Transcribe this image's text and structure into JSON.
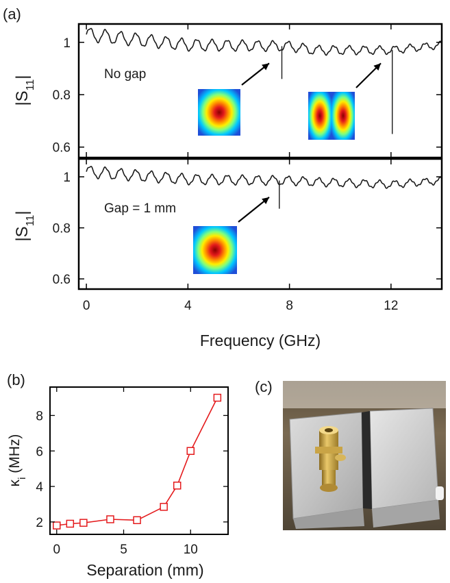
{
  "panel_labels": {
    "a": "(a)",
    "b": "(b)",
    "c": "(c)"
  },
  "colors": {
    "trace": "#1a1a1a",
    "panel_b_series": "#e41a1c",
    "axis": "#000000"
  },
  "chart_data": [
    {
      "type": "line",
      "panel": "(a) top",
      "ylabel": "|S",
      "ylabel_sub": "11",
      "ylabel_end": "|",
      "annotation": "No gap",
      "ylim": [
        0.56,
        1.07
      ],
      "xlim": [
        -0.3,
        14
      ],
      "yticks": [
        0.6,
        0.8,
        1
      ],
      "ytick_labels": [
        "0.6",
        "0.8",
        "1"
      ],
      "baseline": {
        "x": [
          0,
          4,
          8,
          9,
          12,
          14
        ],
        "y": [
          1.03,
          0.99,
          0.985,
          0.97,
          0.97,
          0.99
        ]
      },
      "ripple": {
        "period_ghz": 0.6,
        "amplitude_start": 0.025,
        "amplitude_end": 0.012
      },
      "resonances": [
        {
          "x": 7.7,
          "y_min": 0.86
        },
        {
          "x": 12.05,
          "y_min": 0.65
        }
      ],
      "insets": [
        {
          "name": "fundamental mode",
          "lobes": 1,
          "arrow_to_ghz": 7.2
        },
        {
          "name": "second mode",
          "lobes": 2,
          "arrow_to_ghz": 11.6
        }
      ]
    },
    {
      "type": "line",
      "panel": "(a) bottom",
      "ylabel": "|S",
      "ylabel_sub": "11",
      "ylabel_end": "|",
      "annotation": "Gap = 1 mm",
      "xlabel": "Frequency (GHz)",
      "ylim": [
        0.56,
        1.07
      ],
      "xlim": [
        -0.3,
        14
      ],
      "xticks": [
        0,
        4,
        8,
        12
      ],
      "xtick_labels": [
        "0",
        "4",
        "8",
        "12"
      ],
      "yticks": [
        0.6,
        0.8,
        1
      ],
      "ytick_labels": [
        "0.6",
        "0.8",
        "1"
      ],
      "baseline": {
        "x": [
          0,
          4,
          8,
          9,
          12,
          14
        ],
        "y": [
          1.02,
          0.99,
          0.985,
          0.98,
          0.97,
          0.985
        ]
      },
      "ripple": {
        "period_ghz": 0.6,
        "amplitude_start": 0.022,
        "amplitude_end": 0.012
      },
      "resonances": [
        {
          "x": 7.6,
          "y_min": 0.875
        }
      ],
      "insets": [
        {
          "name": "fundamental mode",
          "lobes": 1,
          "arrow_to_ghz": 7.2
        }
      ]
    },
    {
      "type": "line",
      "panel": "(b)",
      "markers": "open-square",
      "ylabel": "κ",
      "ylabel_sub": "i",
      "ylabel_end": " (MHz)",
      "xlabel": "Separation (mm)",
      "x": [
        0,
        1,
        2,
        4,
        6,
        8,
        9,
        10,
        12
      ],
      "y": [
        1.8,
        1.9,
        1.95,
        2.15,
        2.1,
        2.85,
        4.05,
        6.0,
        9.0
      ],
      "xlim": [
        -0.5,
        12.8
      ],
      "ylim": [
        1.3,
        9.6
      ],
      "xticks": [
        0,
        5,
        10
      ],
      "xtick_labels": [
        "0",
        "5",
        "10"
      ],
      "yticks": [
        2,
        4,
        6,
        8
      ],
      "ytick_labels": [
        "2",
        "4",
        "6",
        "8"
      ]
    }
  ],
  "photo": {
    "description_name": "cavity photo"
  }
}
